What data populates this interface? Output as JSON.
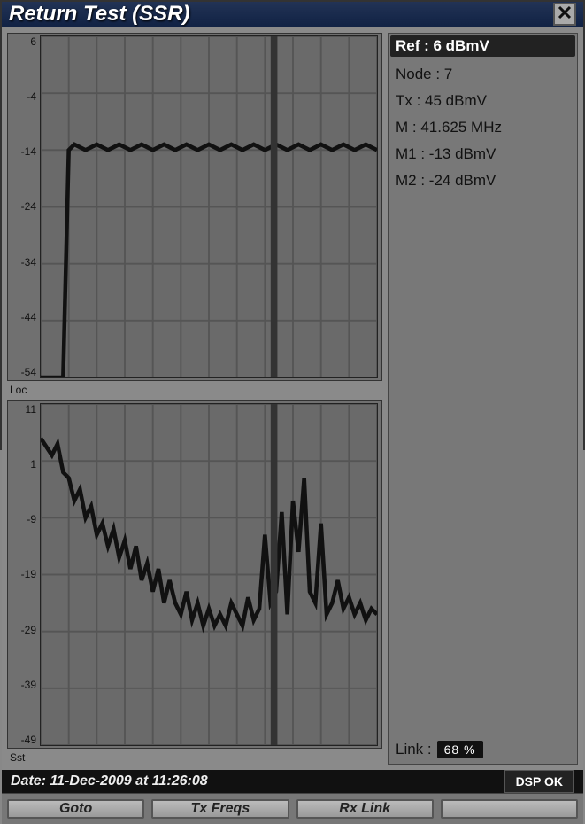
{
  "window": {
    "title": "Return Test (SSR)"
  },
  "chart1": {
    "label": "Loc",
    "ylim": [
      -54,
      6
    ],
    "ytick_step": 10,
    "yticks": [
      "6",
      "-4",
      "-14",
      "-24",
      "-34",
      "-44",
      "-54"
    ],
    "xlim": [
      0,
      60
    ],
    "xtick_step": 5,
    "xticks": [
      "5",
      "10",
      "15",
      "20",
      "25",
      "30",
      "35",
      "40",
      "45",
      "50",
      "55",
      "60"
    ],
    "marker_x": 41.625,
    "trace": [
      [
        0,
        -54
      ],
      [
        4,
        -54
      ],
      [
        5,
        -14
      ],
      [
        6,
        -13
      ],
      [
        8,
        -14
      ],
      [
        10,
        -13
      ],
      [
        12,
        -14
      ],
      [
        14,
        -13
      ],
      [
        16,
        -14
      ],
      [
        18,
        -13
      ],
      [
        20,
        -14
      ],
      [
        22,
        -13
      ],
      [
        24,
        -14
      ],
      [
        26,
        -13
      ],
      [
        28,
        -14
      ],
      [
        30,
        -13
      ],
      [
        32,
        -14
      ],
      [
        34,
        -13
      ],
      [
        36,
        -14
      ],
      [
        38,
        -13
      ],
      [
        40,
        -14
      ],
      [
        42,
        -13
      ],
      [
        44,
        -14
      ],
      [
        46,
        -13
      ],
      [
        48,
        -14
      ],
      [
        50,
        -13
      ],
      [
        52,
        -14
      ],
      [
        54,
        -13
      ],
      [
        56,
        -14
      ],
      [
        58,
        -13
      ],
      [
        60,
        -14
      ]
    ],
    "trace_color": "#111111",
    "grid_color": "#555555",
    "background_color": "#6a6a6a"
  },
  "chart2": {
    "label": "Sst",
    "ylim": [
      -49,
      11
    ],
    "ytick_step": 10,
    "yticks": [
      "11",
      "1",
      "-9",
      "-19",
      "-29",
      "-39",
      "-49"
    ],
    "xlim": [
      0,
      60
    ],
    "xtick_step": 5,
    "xticks": [
      "5",
      "10",
      "15",
      "20",
      "25",
      "30",
      "35",
      "40",
      "45",
      "50",
      "55",
      "60"
    ],
    "marker_x": 41.625,
    "trace": [
      [
        0,
        5
      ],
      [
        2,
        2
      ],
      [
        3,
        4
      ],
      [
        4,
        -1
      ],
      [
        5,
        -2
      ],
      [
        6,
        -6
      ],
      [
        7,
        -4
      ],
      [
        8,
        -9
      ],
      [
        9,
        -7
      ],
      [
        10,
        -12
      ],
      [
        11,
        -10
      ],
      [
        12,
        -14
      ],
      [
        13,
        -11
      ],
      [
        14,
        -16
      ],
      [
        15,
        -13
      ],
      [
        16,
        -18
      ],
      [
        17,
        -14
      ],
      [
        18,
        -20
      ],
      [
        19,
        -17
      ],
      [
        20,
        -22
      ],
      [
        21,
        -18
      ],
      [
        22,
        -24
      ],
      [
        23,
        -20
      ],
      [
        24,
        -24
      ],
      [
        25,
        -26
      ],
      [
        26,
        -22
      ],
      [
        27,
        -27
      ],
      [
        28,
        -24
      ],
      [
        29,
        -28
      ],
      [
        30,
        -25
      ],
      [
        31,
        -28
      ],
      [
        32,
        -26
      ],
      [
        33,
        -28
      ],
      [
        34,
        -24
      ],
      [
        35,
        -26
      ],
      [
        36,
        -28
      ],
      [
        37,
        -23
      ],
      [
        38,
        -27
      ],
      [
        39,
        -25
      ],
      [
        40,
        -12
      ],
      [
        41,
        -24
      ],
      [
        42,
        -22
      ],
      [
        43,
        -8
      ],
      [
        44,
        -26
      ],
      [
        45,
        -6
      ],
      [
        46,
        -15
      ],
      [
        47,
        -2
      ],
      [
        48,
        -22
      ],
      [
        49,
        -24
      ],
      [
        50,
        -10
      ],
      [
        51,
        -26
      ],
      [
        52,
        -24
      ],
      [
        53,
        -20
      ],
      [
        54,
        -25
      ],
      [
        55,
        -23
      ],
      [
        56,
        -26
      ],
      [
        57,
        -24
      ],
      [
        58,
        -27
      ],
      [
        59,
        -25
      ],
      [
        60,
        -26
      ]
    ],
    "trace_color": "#111111",
    "grid_color": "#555555",
    "background_color": "#6a6a6a"
  },
  "info": {
    "ref": "Ref : 6 dBmV",
    "node": "Node : 7",
    "tx": "Tx : 45 dBmV",
    "m": "M : 41.625 MHz",
    "m1": "M1 : -13 dBmV",
    "m2": "M2 : -24 dBmV",
    "link_label": "Link :",
    "link_value": "68 %"
  },
  "status": {
    "date": "Date: 11-Dec-2009 at 11:26:08",
    "dsp": "DSP OK"
  },
  "toolbar": {
    "goto": "Goto",
    "txfreqs": "Tx Freqs",
    "rxlink": "Rx Link",
    "btn4": ""
  },
  "colors": {
    "titlebar_bg": "#1a2a4a",
    "panel_bg": "#888888",
    "info_bg": "#787878",
    "status_bg": "#111111",
    "button_bg": "#aaaaaa"
  }
}
